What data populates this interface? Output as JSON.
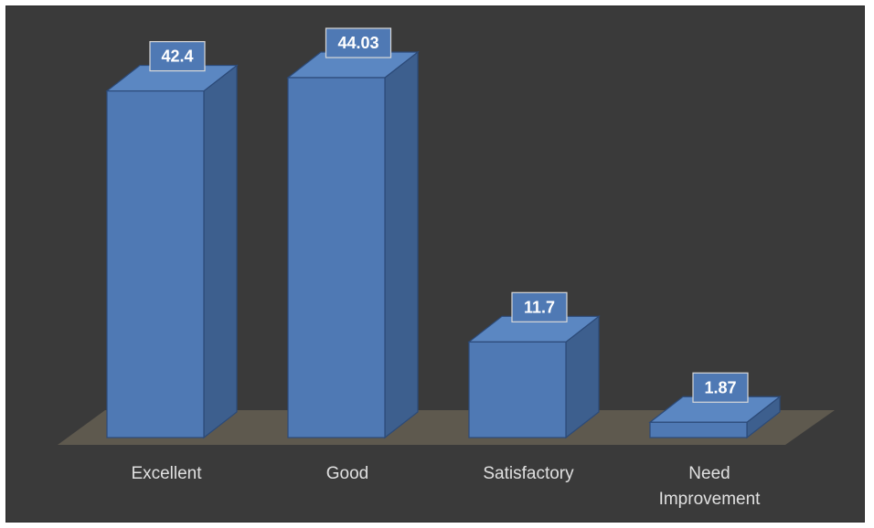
{
  "chart_data": {
    "type": "bar",
    "style": "3d-column",
    "categories": [
      "Excellent",
      "Good",
      "Satisfactory",
      "Need Improvement"
    ],
    "values": [
      42.4,
      44.03,
      11.7,
      1.87
    ],
    "data_labels": [
      "42.4",
      "44.03",
      "11.7",
      "1.87"
    ],
    "ylim": [
      0,
      44.03
    ],
    "grid": false,
    "legend": "none",
    "title": "",
    "xlabel": "",
    "ylabel": ""
  },
  "colors": {
    "background": "#3a3a3a",
    "floor": "#5e594e",
    "bar_front": "#4f79b4",
    "bar_side": "#3d5f8e",
    "bar_top": "#5b87c2",
    "bar_edge": "#2c4a78",
    "label_box_fill": "#4f79b4",
    "label_box_border": "#d8d8d8"
  }
}
